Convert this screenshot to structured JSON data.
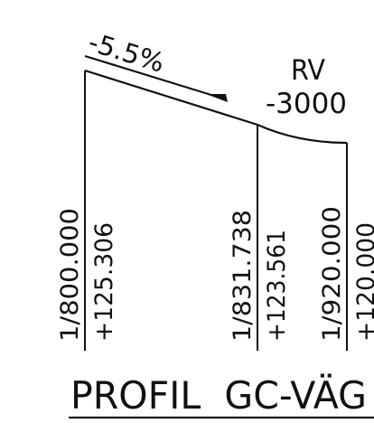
{
  "profile": {
    "grade_label": "-5.5%",
    "curve": {
      "label_line1": "RV",
      "label_line2": "-3000"
    },
    "stations": [
      {
        "chainage": "1/800.000",
        "elevation": "+125.306"
      },
      {
        "chainage": "1/831.738",
        "elevation": "+123.561"
      },
      {
        "chainage": "1/920.000",
        "elevation": "+120.000"
      }
    ],
    "title": "PROFIL  GC-VÄG"
  },
  "colors": {
    "ink": "#111111",
    "background": "#ffffff"
  }
}
